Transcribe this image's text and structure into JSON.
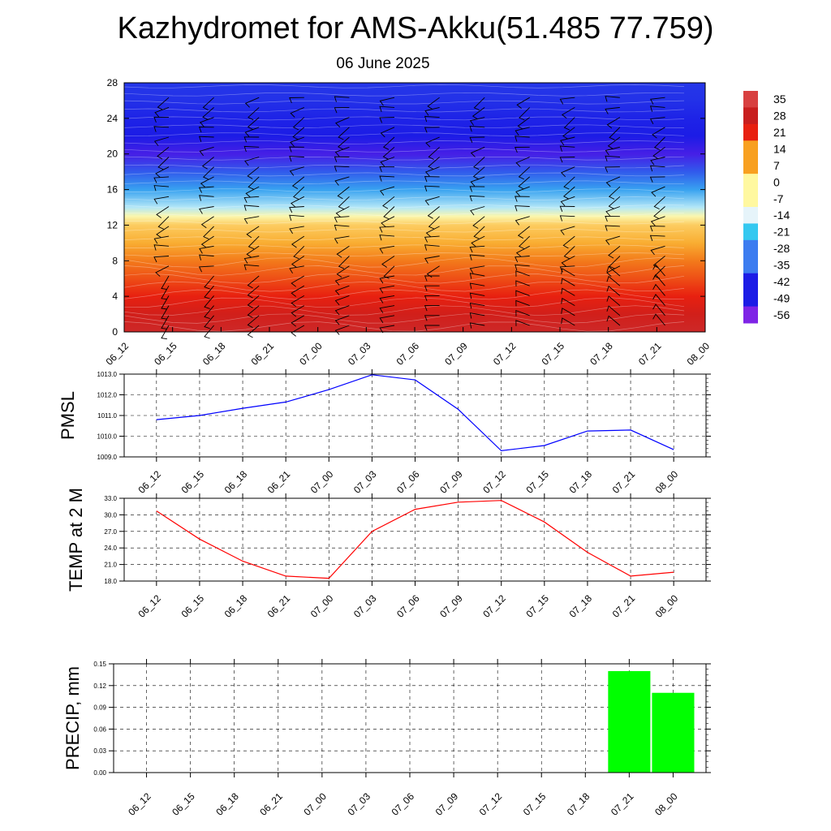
{
  "page": {
    "title": "Kazhydromet for AMS-Akku(51.485 77.759)",
    "subtitle": "06 June 2025"
  },
  "chart_data": [
    {
      "type": "heatmap",
      "ylim": [
        0,
        28
      ],
      "yticks": [
        "0",
        "4",
        "8",
        "12",
        "16",
        "20",
        "24",
        "28"
      ],
      "x_ticks": [
        "06_12",
        "06_15",
        "06_18",
        "06_21",
        "07_00",
        "07_03",
        "07_06",
        "07_09",
        "07_12",
        "07_15",
        "07_18",
        "07_21",
        "08_00"
      ],
      "colorbar_labels": [
        "35",
        "28",
        "21",
        "14",
        "7",
        "0",
        "-7",
        "-14",
        "-21",
        "-28",
        "-35",
        "-42",
        "-49",
        "-56"
      ],
      "colors": {
        "low": "#7f24e6",
        "blue": "#1c1ce6",
        "mid_blue": "#3c7cf0",
        "cyan": "#34c8f0",
        "pale": "#e6f4fa",
        "yellow": "#fff8a0",
        "orange": "#f8a020",
        "red": "#e82010",
        "dark_red": "#c81e1e",
        "high": "#d84040"
      },
      "field_approx": {
        "heights": [
          0,
          2,
          4,
          6,
          8,
          10,
          12,
          13,
          14,
          16,
          18,
          20,
          22,
          24,
          26,
          28
        ],
        "temperature": [
          30,
          26,
          21,
          16,
          11,
          5,
          0,
          -8,
          -16,
          -28,
          -40,
          -52,
          -49,
          -48,
          -46,
          -45
        ]
      }
    },
    {
      "type": "line",
      "ylabel": "PMSL",
      "ylim": [
        1009.0,
        1013.0
      ],
      "yticks": [
        "1009.0",
        "1010.0",
        "1011.0",
        "1012.0",
        "1013.0"
      ],
      "categories": [
        "06_12",
        "06_15",
        "06_18",
        "06_21",
        "07_00",
        "07_03",
        "07_06",
        "07_09",
        "07_12",
        "07_15",
        "07_18",
        "07_21",
        "08_00"
      ],
      "series": [
        {
          "color": "#0000ff",
          "values": [
            1010.8,
            1011.0,
            1011.35,
            1011.65,
            1012.25,
            1012.97,
            1012.72,
            1011.3,
            1009.3,
            1009.55,
            1010.25,
            1010.3,
            1009.35
          ]
        }
      ],
      "grid": true
    },
    {
      "type": "line",
      "ylabel": "TEMP at 2 M",
      "ylim": [
        18.0,
        33.0
      ],
      "yticks": [
        "18.0",
        "21.0",
        "24.0",
        "27.0",
        "30.0",
        "33.0"
      ],
      "categories": [
        "06_12",
        "06_15",
        "06_18",
        "06_21",
        "07_00",
        "07_03",
        "07_06",
        "07_09",
        "07_12",
        "07_15",
        "07_18",
        "07_21",
        "08_00"
      ],
      "series": [
        {
          "color": "#ff0000",
          "values": [
            30.7,
            25.6,
            21.6,
            18.9,
            18.5,
            27.0,
            31.0,
            32.3,
            32.6,
            28.7,
            23.2,
            18.9,
            19.6
          ]
        }
      ],
      "grid": true
    },
    {
      "type": "bar",
      "ylabel": "PRECIP, mm",
      "ylim": [
        0.0,
        0.15
      ],
      "yticks": [
        "0.00",
        "0.03",
        "0.06",
        "0.09",
        "0.12",
        "0.15"
      ],
      "categories": [
        "06_12",
        "06_15",
        "06_18",
        "06_21",
        "07_00",
        "07_03",
        "07_06",
        "07_09",
        "07_12",
        "07_15",
        "07_18",
        "07_21",
        "08_00"
      ],
      "values": [
        0,
        0,
        0,
        0,
        0,
        0,
        0,
        0,
        0,
        0,
        0,
        0.14,
        0.11
      ],
      "bar_color": "#00ff00",
      "grid": true
    }
  ]
}
